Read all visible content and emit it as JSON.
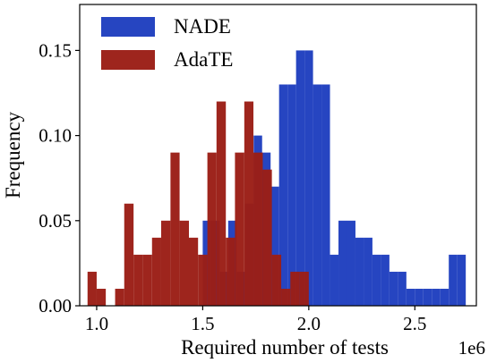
{
  "chart_data": {
    "type": "histogram",
    "xlabel": "Required number of tests",
    "ylabel": "Frequency",
    "x_offset_label": "1e6",
    "xlim": [
      0.92,
      2.79
    ],
    "ylim": [
      0.0,
      0.177
    ],
    "x_ticks": [
      1.0,
      1.5,
      2.0,
      2.5
    ],
    "x_tick_labels": [
      "1.0",
      "1.5",
      "2.0",
      "2.5"
    ],
    "y_ticks": [
      0.0,
      0.05,
      0.1,
      0.15
    ],
    "y_tick_labels": [
      "0.00",
      "0.05",
      "0.10",
      "0.15"
    ],
    "grid": false,
    "legend_position": "top-left",
    "series": [
      {
        "name": "NADE",
        "color": "#1f3fbf",
        "opacity": 0.97,
        "bins": [
          {
            "x0": 1.5,
            "x1": 1.54,
            "value": 0.05
          },
          {
            "x0": 1.54,
            "x1": 1.58,
            "value": 0.05
          },
          {
            "x0": 1.58,
            "x1": 1.62,
            "value": 0.02
          },
          {
            "x0": 1.62,
            "x1": 1.66,
            "value": 0.05
          },
          {
            "x0": 1.66,
            "x1": 1.7,
            "value": 0.02
          },
          {
            "x0": 1.7,
            "x1": 1.74,
            "value": 0.06
          },
          {
            "x0": 1.74,
            "x1": 1.78,
            "value": 0.1
          },
          {
            "x0": 1.78,
            "x1": 1.82,
            "value": 0.09
          },
          {
            "x0": 1.82,
            "x1": 1.86,
            "value": 0.07
          },
          {
            "x0": 1.86,
            "x1": 1.9,
            "value": 0.13
          },
          {
            "x0": 1.9,
            "x1": 1.94,
            "value": 0.13
          },
          {
            "x0": 1.94,
            "x1": 1.98,
            "value": 0.15
          },
          {
            "x0": 1.98,
            "x1": 2.02,
            "value": 0.15
          },
          {
            "x0": 2.02,
            "x1": 2.06,
            "value": 0.13
          },
          {
            "x0": 2.06,
            "x1": 2.1,
            "value": 0.13
          },
          {
            "x0": 2.1,
            "x1": 2.14,
            "value": 0.03
          },
          {
            "x0": 2.14,
            "x1": 2.18,
            "value": 0.05
          },
          {
            "x0": 2.18,
            "x1": 2.22,
            "value": 0.05
          },
          {
            "x0": 2.22,
            "x1": 2.26,
            "value": 0.04
          },
          {
            "x0": 2.26,
            "x1": 2.3,
            "value": 0.04
          },
          {
            "x0": 2.3,
            "x1": 2.34,
            "value": 0.03
          },
          {
            "x0": 2.34,
            "x1": 2.38,
            "value": 0.03
          },
          {
            "x0": 2.38,
            "x1": 2.42,
            "value": 0.02
          },
          {
            "x0": 2.42,
            "x1": 2.46,
            "value": 0.02
          },
          {
            "x0": 2.46,
            "x1": 2.5,
            "value": 0.01
          },
          {
            "x0": 2.5,
            "x1": 2.54,
            "value": 0.01
          },
          {
            "x0": 2.54,
            "x1": 2.58,
            "value": 0.01
          },
          {
            "x0": 2.58,
            "x1": 2.62,
            "value": 0.01
          },
          {
            "x0": 2.62,
            "x1": 2.66,
            "value": 0.01
          },
          {
            "x0": 2.66,
            "x1": 2.7,
            "value": 0.03
          },
          {
            "x0": 2.7,
            "x1": 2.74,
            "value": 0.03
          }
        ]
      },
      {
        "name": "AdaTE",
        "color": "#9b1e16",
        "opacity": 0.97,
        "bins": [
          {
            "x0": 0.957,
            "x1": 1.0,
            "value": 0.02
          },
          {
            "x0": 1.0,
            "x1": 1.043,
            "value": 0.01
          },
          {
            "x0": 1.043,
            "x1": 1.087,
            "value": 0.0
          },
          {
            "x0": 1.087,
            "x1": 1.13,
            "value": 0.01
          },
          {
            "x0": 1.13,
            "x1": 1.174,
            "value": 0.06
          },
          {
            "x0": 1.174,
            "x1": 1.217,
            "value": 0.03
          },
          {
            "x0": 1.217,
            "x1": 1.261,
            "value": 0.03
          },
          {
            "x0": 1.261,
            "x1": 1.304,
            "value": 0.04
          },
          {
            "x0": 1.304,
            "x1": 1.348,
            "value": 0.05
          },
          {
            "x0": 1.348,
            "x1": 1.391,
            "value": 0.09
          },
          {
            "x0": 1.391,
            "x1": 1.435,
            "value": 0.05
          },
          {
            "x0": 1.435,
            "x1": 1.478,
            "value": 0.04
          },
          {
            "x0": 1.478,
            "x1": 1.522,
            "value": 0.03
          },
          {
            "x0": 1.522,
            "x1": 1.565,
            "value": 0.09
          },
          {
            "x0": 1.565,
            "x1": 1.609,
            "value": 0.12
          },
          {
            "x0": 1.609,
            "x1": 1.652,
            "value": 0.04
          },
          {
            "x0": 1.652,
            "x1": 1.696,
            "value": 0.09
          },
          {
            "x0": 1.696,
            "x1": 1.739,
            "value": 0.12
          },
          {
            "x0": 1.739,
            "x1": 1.783,
            "value": 0.09
          },
          {
            "x0": 1.783,
            "x1": 1.826,
            "value": 0.08
          },
          {
            "x0": 1.826,
            "x1": 1.87,
            "value": 0.03
          },
          {
            "x0": 1.87,
            "x1": 1.913,
            "value": 0.01
          },
          {
            "x0": 1.913,
            "x1": 1.957,
            "value": 0.02
          },
          {
            "x0": 1.957,
            "x1": 2.0,
            "value": 0.02
          }
        ]
      }
    ]
  }
}
